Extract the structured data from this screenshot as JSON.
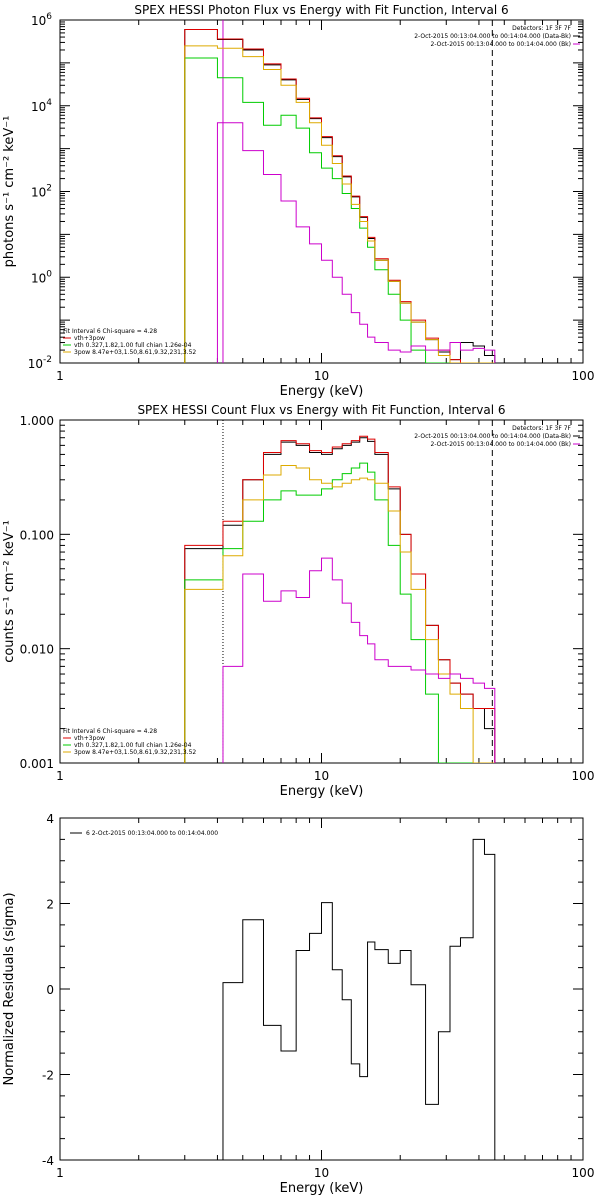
{
  "chart_data": [
    {
      "type": "line",
      "step": true,
      "title": "SPEX HESSI Photon Flux vs Energy with Fit Function, Interval 6",
      "xlabel": "Energy (keV)",
      "ylabel": "photons s⁻¹ cm⁻² keV⁻¹",
      "xscale": "log",
      "yscale": "log",
      "xlim": [
        1,
        100
      ],
      "ylim": [
        0.01,
        1000000
      ],
      "x_tick_labels": [
        "1",
        "10",
        "100"
      ],
      "y_ticks": [
        {
          "value": 0.01,
          "base": "10",
          "exp": "-2"
        },
        {
          "value": 1,
          "base": "10",
          "exp": "0"
        },
        {
          "value": 100,
          "base": "10",
          "exp": "2"
        },
        {
          "value": 10000,
          "base": "10",
          "exp": "4"
        },
        {
          "value": 1000000,
          "base": "10",
          "exp": "6"
        }
      ],
      "legend_lines": [
        "Detectors: 1F 3F 7F",
        "2-Oct-2015 00:13:04.000 to 00:14:04.000 (Data-Bk)",
        "2-Oct-2015 00:13:04.000 to 00:14:04.000 (Bk)"
      ],
      "fit_lines": [
        "Fit Interval 6   Chi-square = 4.28",
        "vth+3pow",
        "vth 0.327,1.82,1.00  full chian 1.26e-04",
        "3pow 8.47e+03,1.50,8.61,9.32,231,3.52"
      ],
      "vlines": [
        {
          "x": 4.2,
          "color": "#cc00cc",
          "style": "solid"
        },
        {
          "x": 45,
          "color": "#000000",
          "style": "dashed"
        }
      ],
      "bin_edges": [
        3,
        4,
        5,
        6,
        7,
        8,
        9,
        10,
        11,
        12,
        13,
        14,
        15,
        16,
        18,
        20,
        22,
        25,
        28,
        31,
        34,
        38,
        42,
        46
      ],
      "series": [
        {
          "name": "Data-Bk",
          "color": "#000000",
          "values": [
            600000,
            350000,
            200000,
            90000,
            40000,
            14000,
            5000,
            1800,
            650,
            220,
            75,
            25,
            8,
            2.5,
            0.8,
            0.25,
            0.09,
            0.035,
            0.018,
            0.012,
            0.03,
            0.025,
            0.015
          ]
        },
        {
          "name": "vth+3pow",
          "color": "#dd0000",
          "values": [
            600000,
            360000,
            210000,
            95000,
            42000,
            15000,
            5200,
            1900,
            680,
            230,
            78,
            26,
            8.5,
            2.7,
            0.85,
            0.27,
            0.1,
            0.038,
            0.02,
            0.012,
            0.01,
            0.01,
            0.01
          ]
        },
        {
          "name": "vth",
          "color": "#00cc00",
          "values": [
            130000,
            45000,
            12000,
            3500,
            6000,
            3000,
            800,
            350,
            200,
            90,
            40,
            14,
            5,
            1.5,
            0.4,
            0.1,
            0.02,
            0.01,
            0.01,
            0.01,
            0.01,
            0.01,
            0.01
          ]
        },
        {
          "name": "3pow",
          "color": "#ddaa00",
          "values": [
            250000,
            220000,
            140000,
            70000,
            30000,
            12000,
            4000,
            1200,
            450,
            150,
            50,
            20,
            7,
            2.5,
            0.8,
            0.25,
            0.09,
            0.035,
            0.015,
            0.01,
            0.01,
            0.01,
            0.01
          ]
        },
        {
          "name": "Bk",
          "color": "#cc00cc",
          "values": [
            null,
            4000,
            900,
            250,
            60,
            15,
            6,
            2.5,
            1,
            0.4,
            0.15,
            0.08,
            0.04,
            0.03,
            0.02,
            0.018,
            0.025,
            0.02,
            0.02,
            0.03,
            0.02,
            0.022,
            0.02
          ]
        }
      ]
    },
    {
      "type": "line",
      "step": true,
      "title": "SPEX HESSI Count Flux vs Energy with Fit Function, Interval 6",
      "xlabel": "Energy (keV)",
      "ylabel": "counts s⁻¹ cm⁻² keV⁻¹",
      "xscale": "log",
      "yscale": "log",
      "xlim": [
        1,
        100
      ],
      "ylim": [
        0.001,
        1
      ],
      "x_tick_labels": [
        "1",
        "10",
        "100"
      ],
      "y_ticks": [
        {
          "value": 0.001,
          "label": "0.001"
        },
        {
          "value": 0.01,
          "label": "0.010"
        },
        {
          "value": 0.1,
          "label": "0.100"
        },
        {
          "value": 1,
          "label": "1.000"
        }
      ],
      "legend_lines": [
        "Detectors: 1F 3F 7F",
        "2-Oct-2015 00:13:04.000 to 00:14:04.000 (Data-Bk)",
        "2-Oct-2015 00:13:04.000 to 00:14:04.000 (Bk)"
      ],
      "fit_lines": [
        "Fit Interval 6   Chi-square = 4.28",
        "vth+3pow",
        "vth 0.327,1.82,1.00  full chian 1.26e-04",
        "3pow 8.47e+03,1.50,8.61,9.32,231,3.52"
      ],
      "vlines": [
        {
          "x": 4.2,
          "color": "#000000",
          "style": "dotted"
        },
        {
          "x": 45,
          "color": "#000000",
          "style": "dashed"
        }
      ],
      "bin_edges": [
        3,
        4.2,
        5,
        6,
        7,
        8,
        9,
        10,
        11,
        12,
        13,
        14,
        15,
        16,
        18,
        20,
        22,
        25,
        28,
        31,
        34,
        38,
        42,
        46
      ],
      "series": [
        {
          "name": "Data-Bk",
          "color": "#000000",
          "values": [
            0.075,
            0.12,
            0.3,
            0.5,
            0.64,
            0.6,
            0.52,
            0.5,
            0.56,
            0.6,
            0.64,
            0.7,
            0.65,
            0.5,
            0.25,
            0.1,
            0.045,
            0.016,
            0.008,
            0.005,
            0.004,
            0.003,
            0.002
          ]
        },
        {
          "name": "vth+3pow",
          "color": "#dd0000",
          "values": [
            0.08,
            0.13,
            0.3,
            0.52,
            0.66,
            0.62,
            0.54,
            0.52,
            0.58,
            0.62,
            0.66,
            0.72,
            0.68,
            0.52,
            0.26,
            0.1,
            0.045,
            0.016,
            0.008,
            0.005,
            0.004,
            0.003,
            0.003
          ]
        },
        {
          "name": "vth",
          "color": "#00cc00",
          "values": [
            0.04,
            0.075,
            0.13,
            0.2,
            0.24,
            0.22,
            0.22,
            0.25,
            0.3,
            0.34,
            0.38,
            0.42,
            0.35,
            0.2,
            0.08,
            0.03,
            0.012,
            0.004,
            0.001,
            0.001,
            0.001,
            0.001,
            0.001
          ]
        },
        {
          "name": "3pow",
          "color": "#ddaa00",
          "values": [
            0.033,
            0.065,
            0.2,
            0.33,
            0.4,
            0.38,
            0.3,
            0.28,
            0.26,
            0.28,
            0.3,
            0.31,
            0.3,
            0.28,
            0.16,
            0.07,
            0.033,
            0.012,
            0.006,
            0.004,
            0.003,
            0.001,
            0.001
          ]
        },
        {
          "name": "Bk",
          "color": "#cc00cc",
          "values": [
            null,
            0.007,
            0.045,
            0.026,
            0.032,
            0.028,
            0.048,
            0.062,
            0.04,
            0.025,
            0.017,
            0.013,
            0.011,
            0.008,
            0.007,
            0.007,
            0.0065,
            0.006,
            0.0055,
            0.006,
            0.0055,
            0.005,
            0.0045
          ]
        }
      ]
    },
    {
      "type": "line",
      "step": true,
      "title": "",
      "xlabel": "Energy (keV)",
      "ylabel": "Normalized Residuals (sigma)",
      "xscale": "log",
      "yscale": "linear",
      "xlim": [
        1,
        100
      ],
      "ylim": [
        -4,
        4
      ],
      "x_tick_labels": [
        "1",
        "10",
        "100"
      ],
      "y_ticks": [
        {
          "value": -4,
          "label": "-4"
        },
        {
          "value": -2,
          "label": "-2"
        },
        {
          "value": 0,
          "label": "0"
        },
        {
          "value": 2,
          "label": "2"
        },
        {
          "value": 4,
          "label": "4"
        }
      ],
      "legend_lines": [
        "6  2-Oct-2015 00:13:04.000 to 00:14:04.000"
      ],
      "bin_edges": [
        4.2,
        5,
        6,
        7,
        8,
        9,
        10,
        11,
        12,
        13,
        14,
        15,
        16,
        18,
        20,
        22,
        25,
        28,
        31,
        34,
        38,
        42,
        46
      ],
      "series": [
        {
          "name": "6",
          "color": "#000000",
          "values": [
            0.15,
            1.62,
            -0.85,
            -1.45,
            0.9,
            1.3,
            2.02,
            0.45,
            -0.25,
            -1.75,
            -2.05,
            1.1,
            0.92,
            0.6,
            0.9,
            0.1,
            -2.7,
            -1.0,
            1.0,
            1.2,
            3.5,
            3.15
          ]
        }
      ]
    }
  ]
}
